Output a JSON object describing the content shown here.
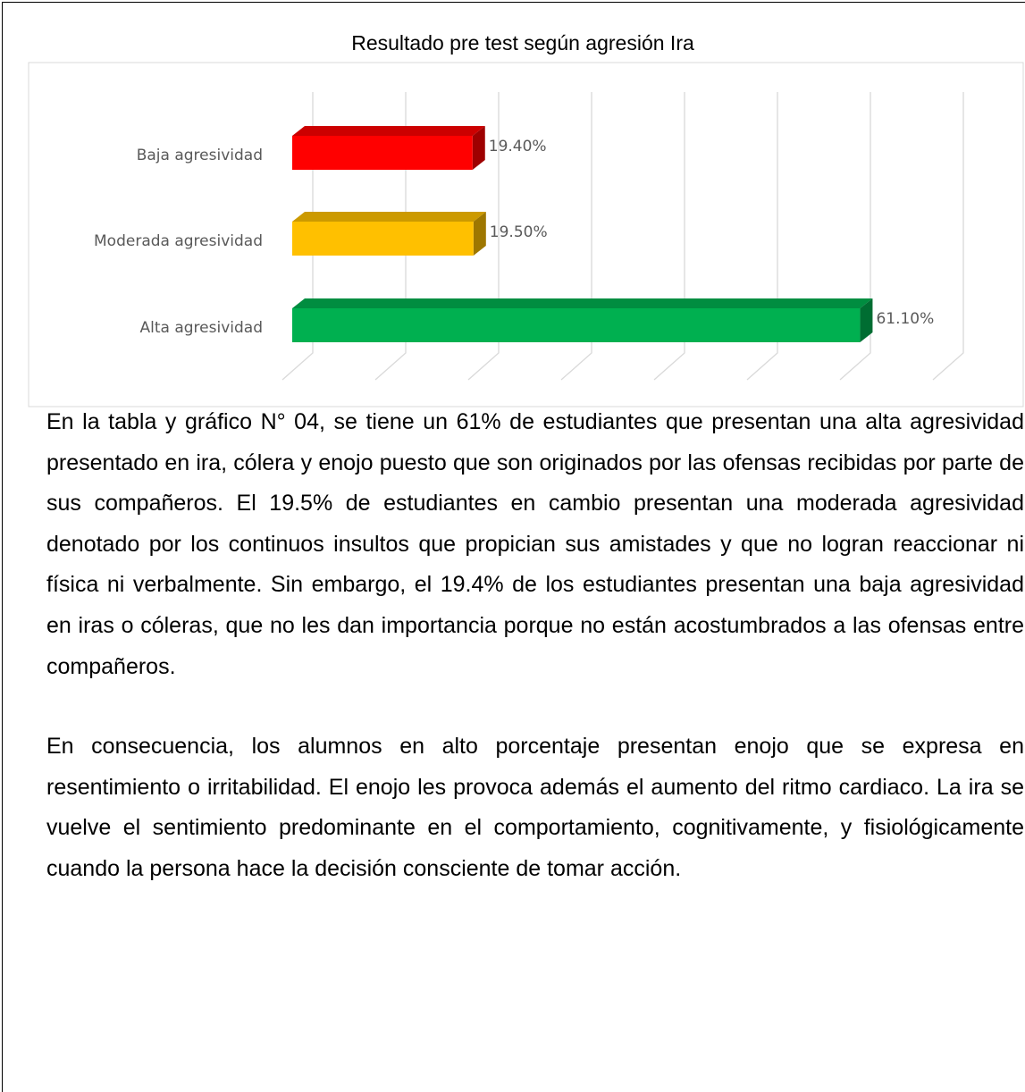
{
  "chart_data": {
    "type": "bar",
    "orientation": "horizontal",
    "title": "Resultado pre test según agresión Ira",
    "categories": [
      "Baja agresividad",
      "Moderada agresividad",
      "Alta agresividad"
    ],
    "values": [
      19.4,
      19.5,
      61.1
    ],
    "value_labels": [
      "19.40%",
      "19.50%",
      "61.10%"
    ],
    "colors": [
      "#ff0000",
      "#ffc000",
      "#00b050"
    ],
    "xlim": [
      0,
      70
    ],
    "xticks": [
      0,
      10,
      20,
      30,
      40,
      50,
      60,
      70
    ],
    "grid": true
  },
  "paragraphs": [
    "En la tabla y gráfico N° 04, se tiene un 61% de estudiantes que presentan una alta agresividad presentado en ira, cólera y enojo puesto que son originados por las ofensas recibidas por parte de sus compañeros. El 19.5% de estudiantes en cambio presentan una moderada agresividad denotado por los continuos insultos que propician sus amistades y que no logran reaccionar ni física ni verbalmente. Sin embargo, el 19.4% de los estudiantes presentan una baja agresividad en iras o cóleras, que no les dan importancia porque no están acostumbrados a las ofensas entre compañeros.",
    "En consecuencia, los alumnos en alto porcentaje presentan enojo que se expresa en resentimiento o irritabilidad. El enojo les provoca además el aumento del ritmo cardiaco. La ira se vuelve el sentimiento predominante en el comportamiento, cognitivamente, y fisiológicamente cuando la persona hace la decisión consciente de tomar acción."
  ]
}
